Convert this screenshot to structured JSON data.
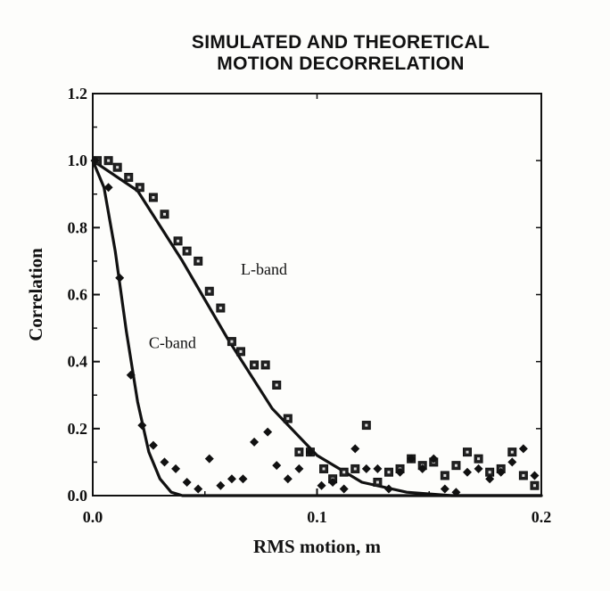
{
  "chart_data": {
    "type": "scatter",
    "title": [
      "SIMULATED AND THEORETICAL",
      "MOTION DECORRELATION"
    ],
    "xlabel": "RMS motion, m",
    "ylabel": "Correlation",
    "xlim": [
      0.0,
      0.2
    ],
    "ylim": [
      0.0,
      1.2
    ],
    "xticks": [
      0.0,
      0.1,
      0.2
    ],
    "xtick_labels": [
      "0.0",
      "0.1",
      "0.2"
    ],
    "yticks": [
      0.0,
      0.2,
      0.4,
      0.6,
      0.8,
      1.0,
      1.2
    ],
    "ytick_labels": [
      "0.0",
      "0.2",
      "0.4",
      "0.6",
      "0.8",
      "1.0",
      "1.2"
    ],
    "grid": false,
    "annotations": [
      {
        "text": "L-band",
        "x": 0.066,
        "y": 0.66
      },
      {
        "text": "C-band",
        "x": 0.025,
        "y": 0.44
      }
    ],
    "series": [
      {
        "marker": "square",
        "kind": "simulated",
        "x": [
          0.002,
          0.007,
          0.011,
          0.016,
          0.021,
          0.027,
          0.032,
          0.038,
          0.042,
          0.047,
          0.052,
          0.057,
          0.062,
          0.066,
          0.072,
          0.077,
          0.082,
          0.087,
          0.092,
          0.097,
          0.103,
          0.107,
          0.112,
          0.117,
          0.122,
          0.127,
          0.132,
          0.137,
          0.142,
          0.147,
          0.152,
          0.157,
          0.162,
          0.167,
          0.172,
          0.177,
          0.182,
          0.187,
          0.192,
          0.197
        ],
        "y": [
          1.0,
          1.0,
          0.98,
          0.95,
          0.92,
          0.89,
          0.84,
          0.76,
          0.73,
          0.7,
          0.61,
          0.56,
          0.46,
          0.43,
          0.39,
          0.39,
          0.33,
          0.23,
          0.13,
          0.13,
          0.08,
          0.05,
          0.07,
          0.08,
          0.21,
          0.04,
          0.07,
          0.08,
          0.11,
          0.09,
          0.1,
          0.06,
          0.09,
          0.13,
          0.11,
          0.07,
          0.08,
          0.13,
          0.06,
          0.03
        ]
      },
      {
        "marker": "diamond",
        "kind": "simulated",
        "x": [
          0.001,
          0.007,
          0.012,
          0.017,
          0.022,
          0.027,
          0.032,
          0.037,
          0.042,
          0.047,
          0.052,
          0.057,
          0.062,
          0.067,
          0.072,
          0.078,
          0.082,
          0.087,
          0.092,
          0.097,
          0.102,
          0.107,
          0.112,
          0.117,
          0.122,
          0.127,
          0.132,
          0.137,
          0.142,
          0.147,
          0.152,
          0.157,
          0.162,
          0.167,
          0.172,
          0.177,
          0.182,
          0.187,
          0.192,
          0.197
        ],
        "y": [
          1.0,
          0.92,
          0.65,
          0.36,
          0.21,
          0.15,
          0.1,
          0.08,
          0.04,
          0.02,
          0.11,
          0.03,
          0.05,
          0.05,
          0.16,
          0.19,
          0.09,
          0.05,
          0.08,
          0.13,
          0.03,
          0.04,
          0.02,
          0.14,
          0.08,
          0.08,
          0.02,
          0.07,
          0.11,
          0.08,
          0.11,
          0.02,
          0.01,
          0.07,
          0.08,
          0.05,
          0.07,
          0.1,
          0.14,
          0.06
        ]
      },
      {
        "marker": "line",
        "kind": "theoretical",
        "x": [
          0.0,
          0.02,
          0.04,
          0.06,
          0.08,
          0.1,
          0.12,
          0.14,
          0.16,
          0.18,
          0.2
        ],
        "y": [
          1.0,
          0.91,
          0.7,
          0.47,
          0.26,
          0.12,
          0.04,
          0.01,
          0.0,
          0.0,
          0.0
        ]
      },
      {
        "marker": "line",
        "kind": "theoretical",
        "x": [
          0.0,
          0.005,
          0.01,
          0.015,
          0.02,
          0.025,
          0.03,
          0.035,
          0.04,
          0.05,
          0.06,
          0.08,
          0.1,
          0.15,
          0.2
        ],
        "y": [
          1.0,
          0.92,
          0.73,
          0.49,
          0.28,
          0.13,
          0.05,
          0.01,
          0.0,
          0.0,
          0.0,
          0.0,
          0.0,
          0.0,
          0.0
        ]
      }
    ]
  }
}
